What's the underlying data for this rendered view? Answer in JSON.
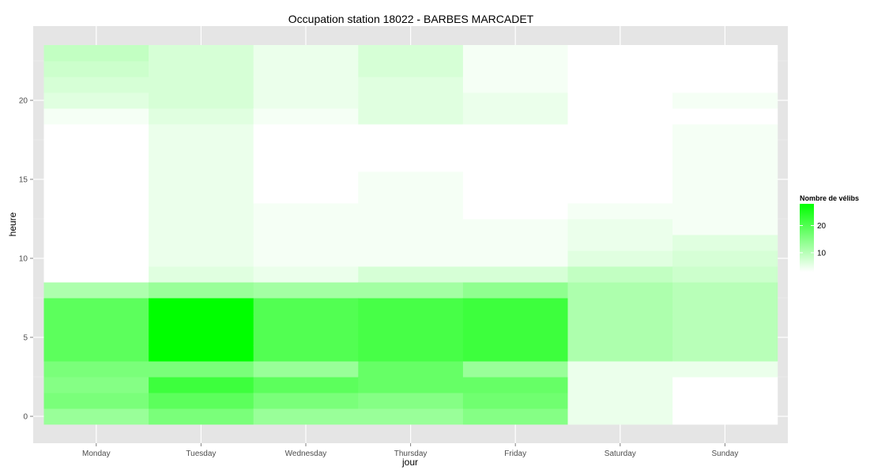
{
  "chart_data": {
    "type": "heatmap",
    "title": "Occupation station 18022 - BARBES MARCADET",
    "xlabel": "jour",
    "ylabel": "heure",
    "categories": [
      "Monday",
      "Tuesday",
      "Wednesday",
      "Thursday",
      "Friday",
      "Saturday",
      "Sunday"
    ],
    "hours": [
      0,
      1,
      2,
      3,
      4,
      5,
      6,
      7,
      8,
      9,
      10,
      11,
      12,
      13,
      14,
      15,
      16,
      17,
      18,
      19,
      20,
      21,
      22,
      23
    ],
    "y_ticks": [
      0,
      5,
      10,
      15,
      20
    ],
    "ylim": [
      -0.5,
      23.5
    ],
    "legend": {
      "title": "Nombre de vélibs",
      "ticks": [
        10,
        20
      ],
      "range": [
        3,
        28
      ],
      "low_color": "#ffffff",
      "high_color": "#00ff00",
      "position": "right"
    },
    "grid": true,
    "values": {
      "Monday": [
        13,
        16,
        15,
        16,
        19,
        19,
        19,
        19,
        11,
        2,
        2,
        1,
        1,
        1,
        1,
        2,
        2,
        2,
        2,
        4,
        6,
        7,
        8,
        9
      ],
      "Tuesday": [
        16,
        19,
        22,
        16,
        28,
        28,
        28,
        28,
        13,
        6,
        5,
        5,
        5,
        5,
        5,
        5,
        5,
        5,
        5,
        6,
        7,
        7,
        7,
        7
      ],
      "Wednesday": [
        13,
        16,
        19,
        13,
        20,
        20,
        20,
        20,
        12,
        5,
        4,
        4,
        4,
        4,
        3,
        3,
        3,
        3,
        3,
        4,
        5,
        5,
        5,
        5
      ],
      "Thursday": [
        13,
        15,
        18,
        18,
        21,
        21,
        21,
        21,
        12,
        7,
        4,
        4,
        4,
        4,
        4,
        4,
        3,
        3,
        3,
        6,
        6,
        6,
        7,
        7
      ],
      "Friday": [
        15,
        17,
        18,
        13,
        22,
        22,
        22,
        22,
        14,
        7,
        4,
        4,
        4,
        3,
        3,
        3,
        2,
        2,
        3,
        5,
        5,
        4,
        4,
        4
      ],
      "Saturday": [
        5,
        5,
        5,
        5,
        11,
        11,
        11,
        11,
        11,
        9,
        6,
        5,
        5,
        4,
        3,
        1,
        1,
        1,
        1,
        2,
        3,
        3,
        3,
        3
      ],
      "Sunday": [
        3,
        3,
        3,
        5,
        10,
        10,
        10,
        10,
        10,
        8,
        7,
        6,
        4,
        4,
        4,
        4,
        4,
        4,
        4,
        3,
        4,
        3,
        3,
        3
      ]
    }
  }
}
